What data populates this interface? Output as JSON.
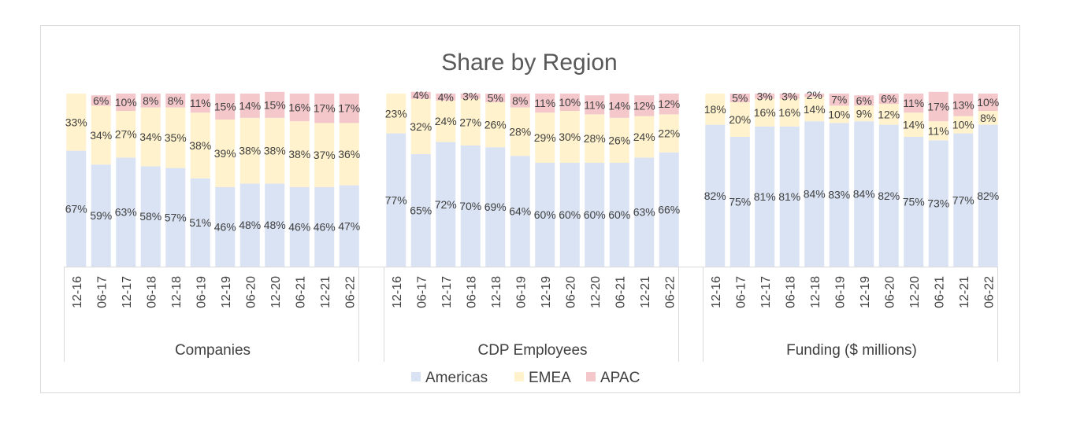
{
  "chart_data": {
    "type": "bar",
    "stacked": true,
    "percent": true,
    "title": "Share by Region",
    "categories": [
      "12-16",
      "06-17",
      "12-17",
      "06-18",
      "12-18",
      "06-19",
      "12-19",
      "06-20",
      "12-20",
      "06-21",
      "12-21",
      "06-22"
    ],
    "legend": {
      "placement": "bottom",
      "entries": [
        "Americas",
        "EMEA",
        "APAC"
      ]
    },
    "colors": {
      "Americas": "#dae3f3",
      "EMEA": "#fff2cc",
      "APAC": "#f4c7cb"
    },
    "groups": [
      {
        "name": "Companies",
        "series": [
          {
            "name": "Americas",
            "values": [
              67,
              59,
              63,
              58,
              57,
              51,
              46,
              48,
              48,
              46,
              46,
              47
            ]
          },
          {
            "name": "EMEA",
            "values": [
              33,
              34,
              27,
              34,
              35,
              38,
              39,
              38,
              38,
              38,
              37,
              36
            ]
          },
          {
            "name": "APAC",
            "values": [
              0,
              6,
              10,
              8,
              8,
              11,
              15,
              14,
              15,
              16,
              17,
              17
            ]
          }
        ]
      },
      {
        "name": "CDP Employees",
        "series": [
          {
            "name": "Americas",
            "values": [
              77,
              65,
              72,
              70,
              69,
              64,
              60,
              60,
              60,
              60,
              63,
              66
            ]
          },
          {
            "name": "EMEA",
            "values": [
              23,
              32,
              24,
              27,
              26,
              28,
              29,
              30,
              28,
              26,
              24,
              22
            ]
          },
          {
            "name": "APAC",
            "values": [
              0,
              4,
              4,
              3,
              5,
              8,
              11,
              10,
              11,
              14,
              12,
              12
            ]
          }
        ]
      },
      {
        "name": "Funding ($ millions)",
        "series": [
          {
            "name": "Americas",
            "values": [
              82,
              75,
              81,
              81,
              84,
              83,
              84,
              82,
              75,
              73,
              77,
              82
            ]
          },
          {
            "name": "EMEA",
            "values": [
              18,
              20,
              16,
              16,
              14,
              10,
              9,
              12,
              14,
              11,
              10,
              8
            ]
          },
          {
            "name": "APAC",
            "values": [
              0,
              5,
              3,
              3,
              2,
              7,
              6,
              6,
              11,
              17,
              13,
              10
            ]
          }
        ]
      }
    ]
  }
}
